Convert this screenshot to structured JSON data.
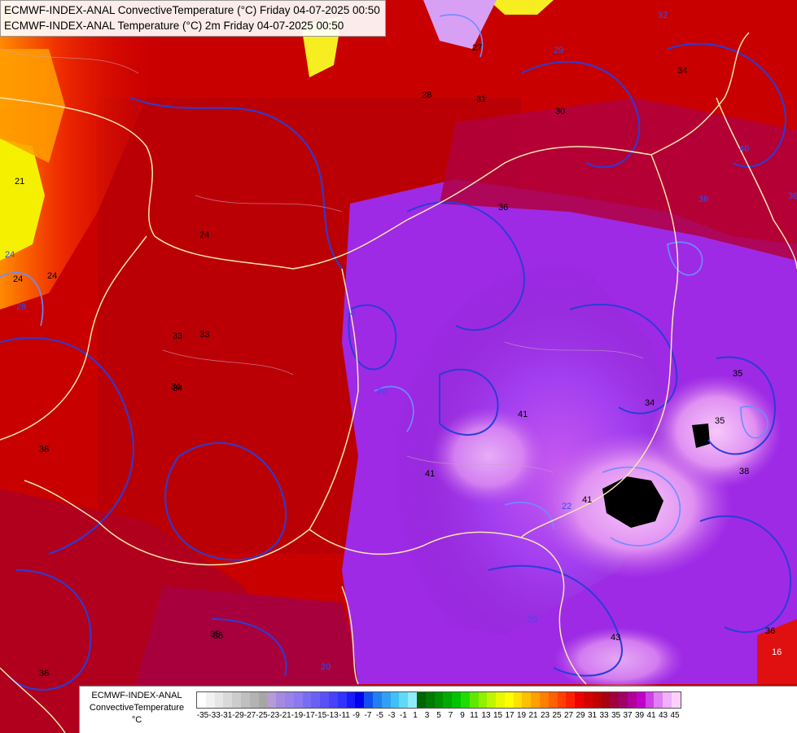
{
  "header": {
    "line1": "ECMWF-INDEX-ANAL ConvectiveTemperature (°C) Friday 04-07-2025 00:50",
    "line2": "ECMWF-INDEX-ANAL Temperature (°C) 2m Friday 04-07-2025 00:50"
  },
  "legend": {
    "title_line1": "ECMWF-INDEX-ANAL",
    "title_line2": "ConvectiveTemperature",
    "unit": "°C",
    "ticks": [
      "-35",
      "-33",
      "-31",
      "-29",
      "-27",
      "-25",
      "-23",
      "-21",
      "-19",
      "-17",
      "-15",
      "-13",
      "-11",
      "-9",
      "-7",
      "-5",
      "-3",
      "-1",
      "1",
      "3",
      "5",
      "7",
      "9",
      "11",
      "13",
      "15",
      "17",
      "19",
      "21",
      "23",
      "25",
      "27",
      "29",
      "31",
      "33",
      "35",
      "37",
      "39",
      "41",
      "43",
      "45"
    ],
    "colors": [
      "#ffffff",
      "#f2f2f2",
      "#e6e6e6",
      "#d9d9d9",
      "#cccccc",
      "#bfbfbf",
      "#b3b3b3",
      "#a6a6a6",
      "#b79ad8",
      "#a58ae0",
      "#9a82ea",
      "#8c78f0",
      "#7a6cf2",
      "#6a60f4",
      "#5a50f6",
      "#4a42f8",
      "#3333ff",
      "#1a1aff",
      "#0000ee",
      "#1050f0",
      "#2080f2",
      "#30a0f4",
      "#40c0f6",
      "#60d8f8",
      "#90ecfa",
      "#006400",
      "#007a00",
      "#009000",
      "#00aa00",
      "#00c400",
      "#20dc00",
      "#60e800",
      "#90f000",
      "#c0f400",
      "#e8f800",
      "#ffff00",
      "#ffe000",
      "#ffc000",
      "#ffa000",
      "#ff8000",
      "#ff6000",
      "#ff4000",
      "#ff2000",
      "#ee0000",
      "#d40000",
      "#be0000",
      "#a80010",
      "#a00040",
      "#a0006a",
      "#b0009a",
      "#c000c8",
      "#d040e8",
      "#e080f4",
      "#f0b0fa",
      "#ffd0ff"
    ]
  },
  "map_labels": [
    {
      "text": "21"
    },
    {
      "text": "24"
    },
    {
      "text": "24"
    },
    {
      "text": "28"
    },
    {
      "text": "27"
    },
    {
      "text": "31"
    },
    {
      "text": "29"
    },
    {
      "text": "30"
    },
    {
      "text": "34"
    },
    {
      "text": "32"
    },
    {
      "text": "33"
    },
    {
      "text": "34"
    },
    {
      "text": "35"
    },
    {
      "text": "36"
    },
    {
      "text": "36"
    },
    {
      "text": "35"
    },
    {
      "text": "36"
    },
    {
      "text": "24"
    },
    {
      "text": "24"
    },
    {
      "text": "20"
    },
    {
      "text": "41"
    },
    {
      "text": "41"
    },
    {
      "text": "41"
    },
    {
      "text": "22"
    },
    {
      "text": "20"
    },
    {
      "text": "20"
    },
    {
      "text": "43"
    },
    {
      "text": "38"
    },
    {
      "text": "16"
    },
    {
      "text": "35"
    },
    {
      "text": "36"
    },
    {
      "text": "24"
    },
    {
      "text": "28"
    },
    {
      "text": "33"
    },
    {
      "text": "35"
    },
    {
      "text": "36"
    },
    {
      "text": "36"
    },
    {
      "text": "34"
    },
    {
      "text": "34"
    },
    {
      "text": "40"
    }
  ]
}
